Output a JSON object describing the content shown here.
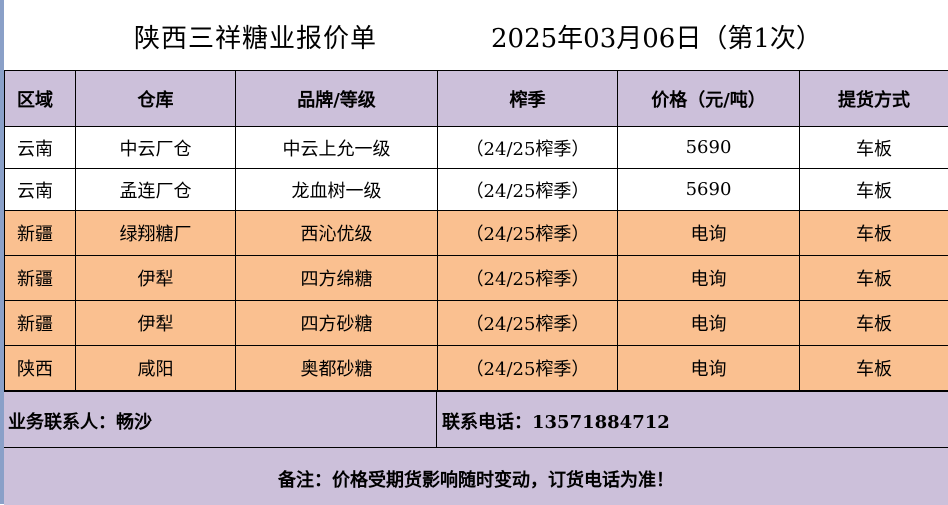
{
  "title": {
    "company": "陕西三祥糖业报价单",
    "date": "2025年03月06日（第1次）"
  },
  "table": {
    "headers": [
      "区域",
      "仓库",
      "品牌/等级",
      "榨季",
      "价格（元/吨）",
      "提货方式"
    ],
    "rows": [
      {
        "region": "云南",
        "warehouse": "中云厂仓",
        "brand": "中云上允一级",
        "season": "（24/25榨季）",
        "price": "5690",
        "delivery": "车板",
        "style": "white"
      },
      {
        "region": "云南",
        "warehouse": "孟连厂仓",
        "brand": "龙血树一级",
        "season": "（24/25榨季）",
        "price": "5690",
        "delivery": "车板",
        "style": "white"
      },
      {
        "region": "新疆",
        "warehouse": "绿翔糖厂",
        "brand": "西沁优级",
        "season": "（24/25榨季）",
        "price": "电询",
        "delivery": "车板",
        "style": "orange"
      },
      {
        "region": "新疆",
        "warehouse": "伊犁",
        "brand": "四方绵糖",
        "season": "（24/25榨季）",
        "price": "电询",
        "delivery": "车板",
        "style": "orange"
      },
      {
        "region": "新疆",
        "warehouse": "伊犁",
        "brand": "四方砂糖",
        "season": "（24/25榨季）",
        "price": "电询",
        "delivery": "车板",
        "style": "orange"
      },
      {
        "region": "陕西",
        "warehouse": "咸阳",
        "brand": "奥都砂糖",
        "season": "（24/25榨季）",
        "price": "电询",
        "delivery": "车板",
        "style": "orange"
      }
    ]
  },
  "contact": {
    "person": "业务联系人：畅沙",
    "phone": "联系电话：13571884712"
  },
  "note": "备注：价格受期货影响随时变动，订货电话为准！",
  "colors": {
    "header_bg": "#ccc0da",
    "orange_bg": "#fac090",
    "white_bg": "#ffffff"
  }
}
